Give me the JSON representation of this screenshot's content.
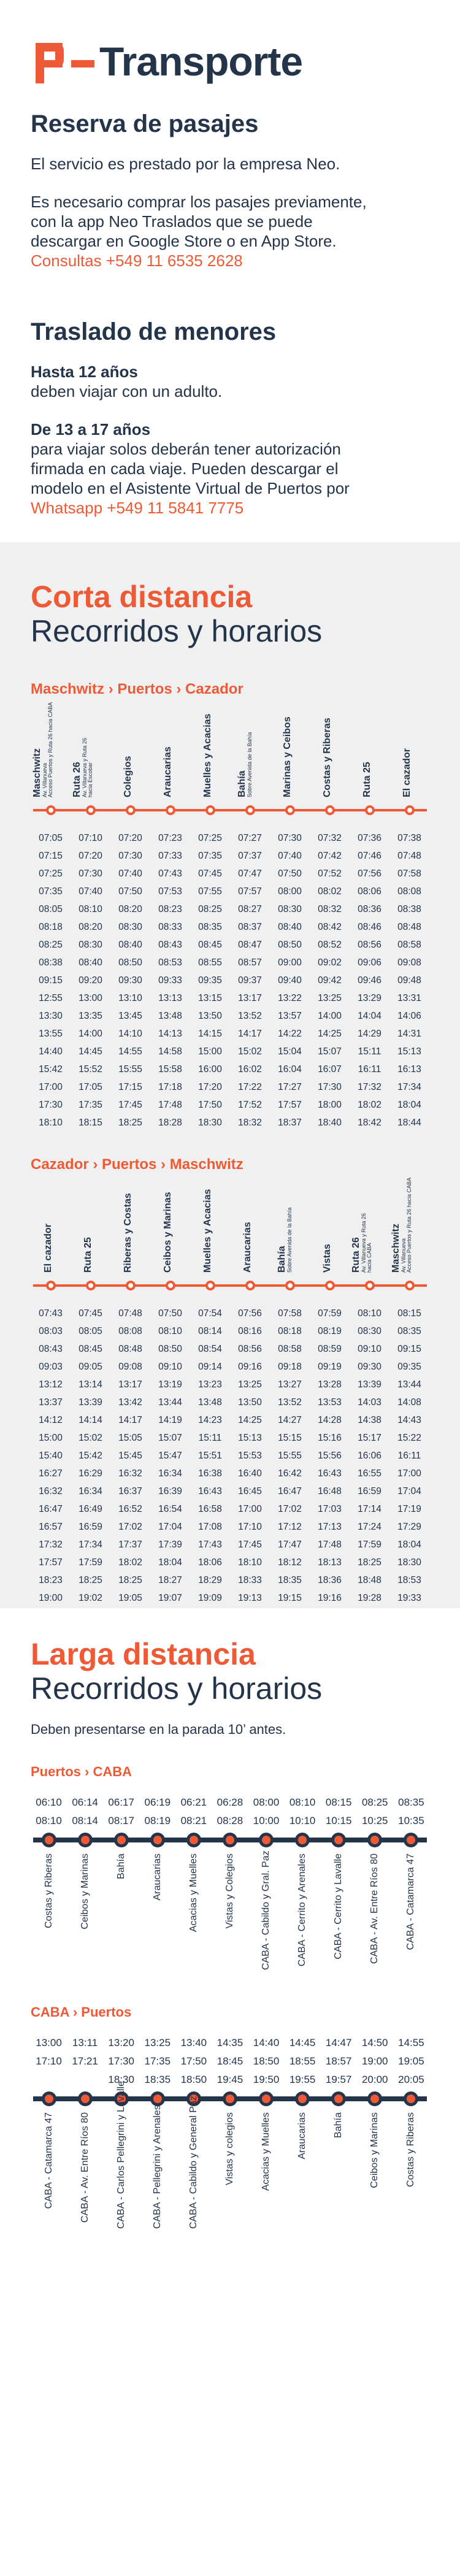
{
  "brand": {
    "name": "Transporte",
    "accent": "#ee5a36",
    "ink": "#24344a",
    "band": "#f0f0f0"
  },
  "reserva": {
    "title": "Reserva de pasajes",
    "p1": "El servicio es prestado por la empresa Neo.",
    "p2a": "Es necesario comprar los pasajes previamente,",
    "p2b": "con la app Neo Traslados que se puede",
    "p2c": "descargar en Google Store o en App Store.",
    "contact": "Consultas +549 11 6535 2628"
  },
  "menores": {
    "title": "Traslado de menores",
    "h1": "Hasta 12 años",
    "t1": "deben viajar con un adulto.",
    "h2": "De 13 a 17 años",
    "t2a": "para viajar solos deberán tener autorización",
    "t2b": "firmada en cada viaje. Pueden descargar el",
    "t2c": "modelo en el Asistente Virtual de Puertos por",
    "contact": "Whatsapp +549 11 5841 7775"
  },
  "corta": {
    "title1": "Corta distancia",
    "title2": "Recorridos y horarios",
    "route1": {
      "name": "Maschwitz › Puertos › Cazador",
      "stops": [
        {
          "name": "Maschwitz",
          "sub": "Av. Villanueva",
          "sub2": "Acceso Puertos y Ruta 26 hacia CABA"
        },
        {
          "name": "Ruta 26",
          "sub": "Av. Villanueva y Ruta 26",
          "sub2": "hacia Escobar"
        },
        {
          "name": "Colegios",
          "sub": "",
          "sub2": ""
        },
        {
          "name": "Araucarias",
          "sub": "",
          "sub2": ""
        },
        {
          "name": "Muelles y Acacias",
          "sub": "",
          "sub2": ""
        },
        {
          "name": "Bahía",
          "sub": "Sobre Avenida de la Bahía",
          "sub2": ""
        },
        {
          "name": "Marinas y Ceibos",
          "sub": "",
          "sub2": ""
        },
        {
          "name": "Costas y Riberas",
          "sub": "",
          "sub2": ""
        },
        {
          "name": "Ruta 25",
          "sub": "",
          "sub2": ""
        },
        {
          "name": "El cazador",
          "sub": "",
          "sub2": ""
        }
      ],
      "rows": [
        [
          "07:05",
          "07:10",
          "07:20",
          "07:23",
          "07:25",
          "07:27",
          "07:30",
          "07:32",
          "07:36",
          "07:38"
        ],
        [
          "07:15",
          "07:20",
          "07:30",
          "07:33",
          "07:35",
          "07:37",
          "07:40",
          "07:42",
          "07:46",
          "07:48"
        ],
        [
          "07:25",
          "07:30",
          "07:40",
          "07:43",
          "07:45",
          "07:47",
          "07:50",
          "07:52",
          "07:56",
          "07:58"
        ],
        [
          "07:35",
          "07:40",
          "07:50",
          "07:53",
          "07:55",
          "07:57",
          "08:00",
          "08:02",
          "08:06",
          "08:08"
        ],
        [
          "08:05",
          "08:10",
          "08:20",
          "08:23",
          "08:25",
          "08:27",
          "08:30",
          "08:32",
          "08:36",
          "08:38"
        ],
        [
          "08:18",
          "08:20",
          "08:30",
          "08:33",
          "08:35",
          "08:37",
          "08:40",
          "08:42",
          "08:46",
          "08:48"
        ],
        [
          "08:25",
          "08:30",
          "08:40",
          "08:43",
          "08:45",
          "08:47",
          "08:50",
          "08:52",
          "08:56",
          "08:58"
        ],
        [
          "08:38",
          "08:40",
          "08:50",
          "08:53",
          "08:55",
          "08:57",
          "09:00",
          "09:02",
          "09:06",
          "09:08"
        ],
        [
          "09:15",
          "09:20",
          "09:30",
          "09:33",
          "09:35",
          "09:37",
          "09:40",
          "09:42",
          "09:46",
          "09:48"
        ],
        [
          "12:55",
          "13:00",
          "13:10",
          "13:13",
          "13:15",
          "13:17",
          "13:22",
          "13:25",
          "13:29",
          "13:31"
        ],
        [
          "13:30",
          "13:35",
          "13:45",
          "13:48",
          "13:50",
          "13:52",
          "13:57",
          "14:00",
          "14:04",
          "14:06"
        ],
        [
          "13:55",
          "14:00",
          "14:10",
          "14:13",
          "14:15",
          "14:17",
          "14:22",
          "14:25",
          "14:29",
          "14:31"
        ],
        [
          "14:40",
          "14:45",
          "14:55",
          "14:58",
          "15:00",
          "15:02",
          "15:04",
          "15:07",
          "15:11",
          "15:13"
        ],
        [
          "15:42",
          "15:52",
          "15:55",
          "15:58",
          "16:00",
          "16:02",
          "16:04",
          "16:07",
          "16:11",
          "16:13"
        ],
        [
          "17:00",
          "17:05",
          "17:15",
          "17:18",
          "17:20",
          "17:22",
          "17:27",
          "17:30",
          "17:32",
          "17:34"
        ],
        [
          "17:30",
          "17:35",
          "17:45",
          "17:48",
          "17:50",
          "17:52",
          "17:57",
          "18:00",
          "18:02",
          "18:04"
        ],
        [
          "18:10",
          "18:15",
          "18:25",
          "18:28",
          "18:30",
          "18:32",
          "18:37",
          "18:40",
          "18:42",
          "18:44"
        ]
      ]
    },
    "route2": {
      "name": "Cazador › Puertos › Maschwitz",
      "stops": [
        {
          "name": "El cazador",
          "sub": "",
          "sub2": ""
        },
        {
          "name": "Ruta 25",
          "sub": "",
          "sub2": ""
        },
        {
          "name": "Riberas y Costas",
          "sub": "",
          "sub2": ""
        },
        {
          "name": "Ceibos y Marinas",
          "sub": "",
          "sub2": ""
        },
        {
          "name": "Muelles y Acacias",
          "sub": "",
          "sub2": ""
        },
        {
          "name": "Araucarias",
          "sub": "",
          "sub2": ""
        },
        {
          "name": "Bahía",
          "sub": "Sobre Avenida de la Bahía",
          "sub2": ""
        },
        {
          "name": "Vistas",
          "sub": "",
          "sub2": ""
        },
        {
          "name": "Ruta 26",
          "sub": "Av. Villanueva y Ruta 26",
          "sub2": "hacia CABA"
        },
        {
          "name": "Maschwitz",
          "sub": "Av. Villanueva",
          "sub2": "Acceso Puertos y Ruta 26 hacia CABA"
        }
      ],
      "rows": [
        [
          "07:43",
          "07:45",
          "07:48",
          "07:50",
          "07:54",
          "07:56",
          "07:58",
          "07:59",
          "08:10",
          "08:15"
        ],
        [
          "08:03",
          "08:05",
          "08:08",
          "08:10",
          "08:14",
          "08:16",
          "08:18",
          "08:19",
          "08:30",
          "08:35"
        ],
        [
          "08:43",
          "08:45",
          "08:48",
          "08:50",
          "08:54",
          "08:56",
          "08:58",
          "08:59",
          "09:10",
          "09:15"
        ],
        [
          "09:03",
          "09:05",
          "09:08",
          "09:10",
          "09:14",
          "09:16",
          "09:18",
          "09:19",
          "09:30",
          "09:35"
        ],
        [
          "13:12",
          "13:14",
          "13:17",
          "13:19",
          "13:23",
          "13:25",
          "13:27",
          "13:28",
          "13:39",
          "13:44"
        ],
        [
          "13:37",
          "13:39",
          "13:42",
          "13:44",
          "13:48",
          "13:50",
          "13:52",
          "13:53",
          "14:03",
          "14:08"
        ],
        [
          "14:12",
          "14:14",
          "14:17",
          "14:19",
          "14:23",
          "14:25",
          "14:27",
          "14:28",
          "14:38",
          "14:43"
        ],
        [
          "15:00",
          "15:02",
          "15:05",
          "15:07",
          "15:11",
          "15:13",
          "15:15",
          "15:16",
          "15:17",
          "15:22"
        ],
        [
          "15:40",
          "15:42",
          "15:45",
          "15:47",
          "15:51",
          "15:53",
          "15:55",
          "15:56",
          "16:06",
          "16:11"
        ],
        [
          "16:27",
          "16:29",
          "16:32",
          "16:34",
          "16:38",
          "16:40",
          "16:42",
          "16:43",
          "16:55",
          "17:00"
        ],
        [
          "16:32",
          "16:34",
          "16:37",
          "16:39",
          "16:43",
          "16:45",
          "16:47",
          "16:48",
          "16:59",
          "17:04"
        ],
        [
          "16:47",
          "16:49",
          "16:52",
          "16:54",
          "16:58",
          "17:00",
          "17:02",
          "17:03",
          "17:14",
          "17:19"
        ],
        [
          "16:57",
          "16:59",
          "17:02",
          "17:04",
          "17:08",
          "17:10",
          "17:12",
          "17:13",
          "17:24",
          "17:29"
        ],
        [
          "17:32",
          "17:34",
          "17:37",
          "17:39",
          "17:43",
          "17:45",
          "17:47",
          "17:48",
          "17:59",
          "18:04"
        ],
        [
          "17:57",
          "17:59",
          "18:02",
          "18:04",
          "18:06",
          "18:10",
          "18:12",
          "18:13",
          "18:25",
          "18:30"
        ],
        [
          "18:23",
          "18:25",
          "18:25",
          "18:27",
          "18:29",
          "18:33",
          "18:35",
          "18:36",
          "18:48",
          "18:53"
        ],
        [
          "19:00",
          "19:02",
          "19:05",
          "19:07",
          "19:09",
          "19:13",
          "19:15",
          "19:16",
          "19:28",
          "19:33"
        ]
      ]
    }
  },
  "larga": {
    "title1": "Larga distancia",
    "title2": "Recorridos y horarios",
    "note": "Deben presentarse en la parada 10’ antes.",
    "route1": {
      "name": "Puertos › CABA",
      "rows": [
        [
          "06:10",
          "06:14",
          "06:17",
          "06:19",
          "06:21",
          "06:28",
          "08:00",
          "08:10",
          "08:15",
          "08:25",
          "08:35"
        ],
        [
          "08:10",
          "08:14",
          "08:17",
          "08:19",
          "08:21",
          "08:28",
          "10:00",
          "10:10",
          "10:15",
          "10:25",
          "10:35"
        ]
      ],
      "stops": [
        "Costas y Riberas",
        "Ceibos y Marinas",
        "Bahía",
        "Araucarias",
        "Acacias y Muelles",
        "Vistas y Colegios",
        "CABA - Cabildo y Gral. Paz",
        "CABA - Cerrito y Arenales",
        "CABA - Cerrito y Lavalle",
        "CABA - Av. Entre Ríos 80",
        "CABA - Catamarca 47"
      ]
    },
    "route2": {
      "name": "CABA › Puertos",
      "rows": [
        [
          "13:00",
          "13:11",
          "13:20",
          "13:25",
          "13:40",
          "14:35",
          "14:40",
          "14:45",
          "14:47",
          "14:50",
          "14:55"
        ],
        [
          "17:10",
          "17:21",
          "17:30",
          "17:35",
          "17:50",
          "18:45",
          "18:50",
          "18:55",
          "18:57",
          "19:00",
          "19:05"
        ],
        [
          "",
          "",
          "18:30",
          "18:35",
          "18:50",
          "19:45",
          "19:50",
          "19:55",
          "19:57",
          "20:00",
          "20:05"
        ]
      ],
      "stops": [
        "CABA - Catamarca 47",
        "CABA - Av. Entre Ríos 80",
        "CABA - Carlos Pellegrini y Lavalle",
        "CABA - Pellegrini y Arenales",
        "CABA - Cabildo y General Paz",
        "Vistas y colegios",
        "Acacias y Muelles",
        "Araucarias",
        "Bahía",
        "Ceibos y Marinas",
        "Costas y Riberas"
      ]
    }
  }
}
